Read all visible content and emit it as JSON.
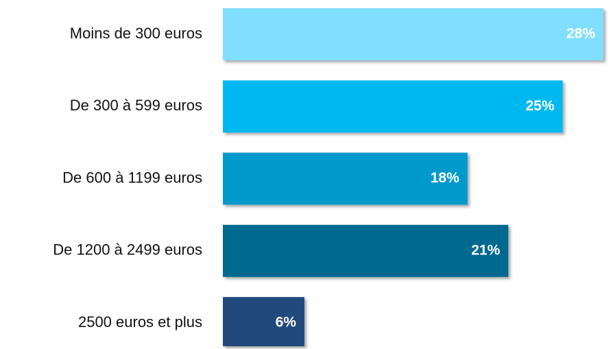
{
  "chart_data": {
    "type": "bar",
    "orientation": "horizontal",
    "categories": [
      "Moins de 300 euros",
      "De 300 à 599 euros",
      "De 600 à 1199 euros",
      "De 1200 à 2499 euros",
      "2500 euros et plus"
    ],
    "values": [
      28,
      25,
      18,
      21,
      6
    ],
    "value_labels": [
      "28%",
      "25%",
      "18%",
      "21%",
      "6%"
    ],
    "colors": [
      "#80dfff",
      "#00b8f1",
      "#0099cc",
      "#006990",
      "#234a7c"
    ]
  }
}
